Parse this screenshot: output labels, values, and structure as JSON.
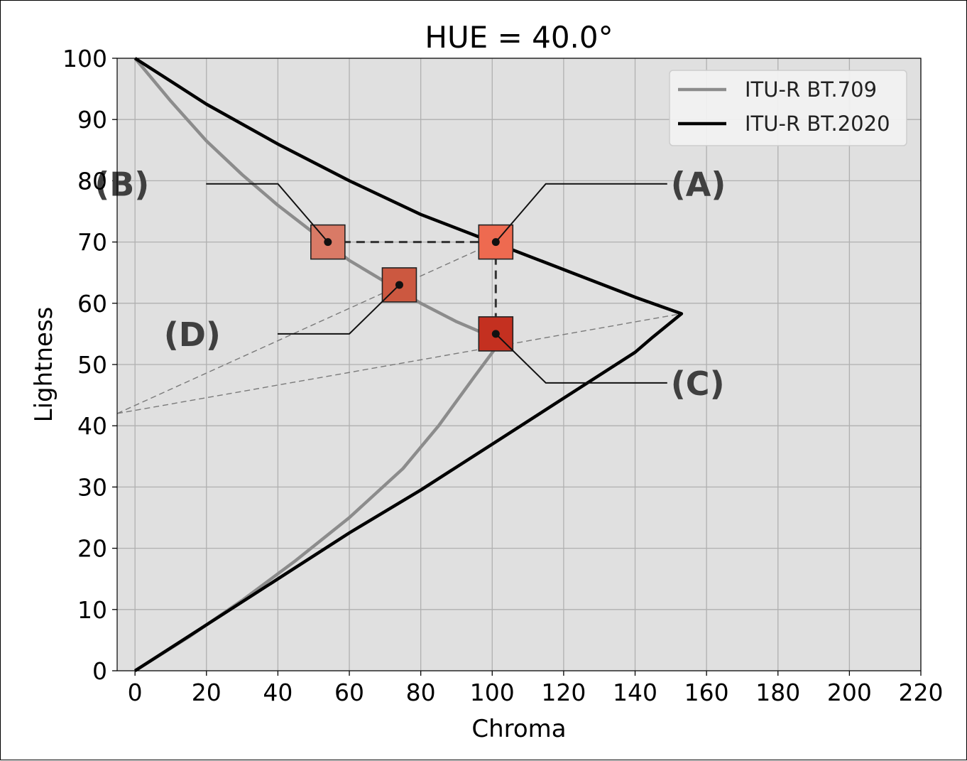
{
  "chart_data": {
    "type": "line",
    "title": "HUE = 40.0°",
    "xlabel": "Chroma",
    "ylabel": "Lightness",
    "xlim": [
      -5,
      220
    ],
    "ylim": [
      0,
      100
    ],
    "xticks": [
      0,
      20,
      40,
      60,
      80,
      100,
      120,
      140,
      160,
      180,
      200,
      220
    ],
    "yticks": [
      0,
      10,
      20,
      30,
      40,
      50,
      60,
      70,
      80,
      90,
      100
    ],
    "grid": true,
    "legend_position": "top-right",
    "series": [
      {
        "name": "ITU-R BT.709",
        "color": "#8c8c8c",
        "points": [
          [
            0,
            100
          ],
          [
            10,
            93
          ],
          [
            20,
            86.5
          ],
          [
            30,
            81
          ],
          [
            40,
            76
          ],
          [
            50,
            71.5
          ],
          [
            60,
            67
          ],
          [
            70,
            63.5
          ],
          [
            80,
            60
          ],
          [
            90,
            57
          ],
          [
            100,
            54.5
          ],
          [
            102,
            53.5
          ],
          [
            95,
            48
          ],
          [
            85,
            40
          ],
          [
            75,
            33
          ],
          [
            60,
            25
          ],
          [
            45,
            18
          ],
          [
            30,
            11.5
          ],
          [
            15,
            5.5
          ],
          [
            0,
            0
          ]
        ]
      },
      {
        "name": "ITU-R BT.2020",
        "color": "#000000",
        "points": [
          [
            0,
            100
          ],
          [
            20,
            92.5
          ],
          [
            40,
            86
          ],
          [
            60,
            80
          ],
          [
            80,
            74.5
          ],
          [
            100,
            70
          ],
          [
            120,
            65.5
          ],
          [
            140,
            61
          ],
          [
            153,
            58.3
          ],
          [
            145,
            54.5
          ],
          [
            140,
            52
          ],
          [
            120,
            44.5
          ],
          [
            100,
            37
          ],
          [
            80,
            29.5
          ],
          [
            60,
            22.5
          ],
          [
            40,
            15
          ],
          [
            20,
            7.5
          ],
          [
            0,
            0
          ]
        ]
      }
    ],
    "guide_lines": [
      {
        "style": "bold-dashed",
        "from": [
          54,
          70
        ],
        "to": [
          101,
          70
        ]
      },
      {
        "style": "bold-dashed",
        "from": [
          101,
          70
        ],
        "to": [
          101,
          55
        ]
      },
      {
        "style": "thin-dashed",
        "from": [
          -5,
          42
        ],
        "to": [
          101,
          70
        ]
      },
      {
        "style": "thin-dashed",
        "from": [
          -5,
          42
        ],
        "to": [
          153,
          58.3
        ]
      }
    ],
    "markers": [
      {
        "label": "(A)",
        "x": 101,
        "y": 70,
        "color": "#ee6a50",
        "label_side": "right",
        "label_x": 149,
        "label_y": 79.5,
        "elbow_x": 115,
        "elbow_y": 79.5
      },
      {
        "label": "(B)",
        "x": 54,
        "y": 70,
        "color": "#d97a66",
        "label_side": "left",
        "label_x": 5,
        "label_y": 79.5,
        "elbow_x": 40,
        "elbow_y": 79.5
      },
      {
        "label": "(C)",
        "x": 101,
        "y": 55,
        "color": "#c43020",
        "label_side": "right",
        "label_x": 149,
        "label_y": 47,
        "elbow_x": 115,
        "elbow_y": 47
      },
      {
        "label": "(D)",
        "x": 74,
        "y": 63,
        "color": "#cc5840",
        "label_side": "left",
        "label_x": 25,
        "label_y": 55,
        "elbow_x": 60,
        "elbow_y": 55
      }
    ]
  }
}
